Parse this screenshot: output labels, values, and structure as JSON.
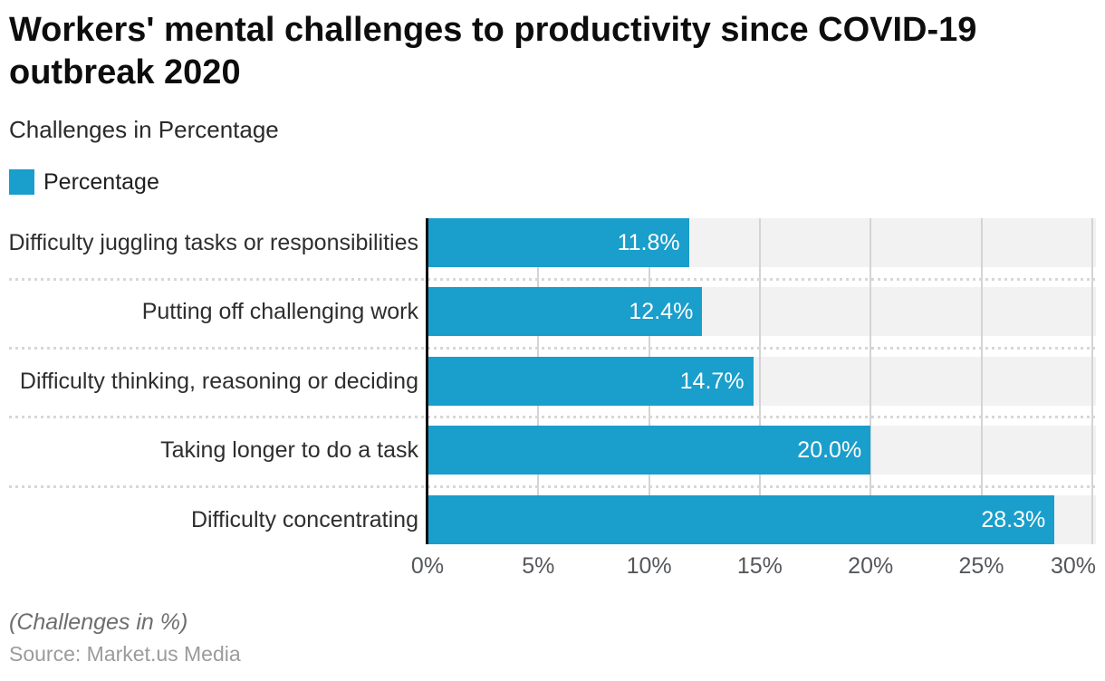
{
  "header": {
    "title_line1": "Workers' mental challenges to productivity since COVID-19",
    "title_line2": "outbreak 2020",
    "subtitle": "Challenges in Percentage"
  },
  "legend": {
    "label": "Percentage",
    "swatch_color": "#1a9ecb"
  },
  "chart_data": {
    "type": "bar",
    "orientation": "horizontal",
    "title": "Workers' mental challenges to productivity since COVID-19 outbreak 2020",
    "subtitle": "Challenges in Percentage",
    "series_name": "Percentage",
    "categories": [
      "Difficulty juggling tasks or responsibilities",
      "Putting off challenging work",
      "Difficulty thinking, reasoning or deciding",
      "Taking longer to do a task",
      "Difficulty concentrating"
    ],
    "values": [
      11.8,
      12.4,
      14.7,
      20.0,
      28.3
    ],
    "value_labels": [
      "11.8%",
      "12.4%",
      "14.7%",
      "20.0%",
      "28.3%"
    ],
    "xlim": [
      0,
      30
    ],
    "x_ticks": [
      {
        "value": 0,
        "label": "0%"
      },
      {
        "value": 5,
        "label": "5%"
      },
      {
        "value": 10,
        "label": "10%"
      },
      {
        "value": 15,
        "label": "15%"
      },
      {
        "value": 20,
        "label": "20%"
      },
      {
        "value": 25,
        "label": "25%"
      },
      {
        "value": 30,
        "label": "30%"
      }
    ],
    "grid": {
      "vertical_gridlines": "solid",
      "row_separators": "dotted",
      "horizontal_gridlines": "off"
    },
    "legend_position": "top-left",
    "bar_color": "#1a9ecb",
    "band_color": "#f2f2f2",
    "value_label_color": "#ffffff"
  },
  "footer": {
    "note": "(Challenges in %)",
    "source": "Source: Market.us Media"
  }
}
